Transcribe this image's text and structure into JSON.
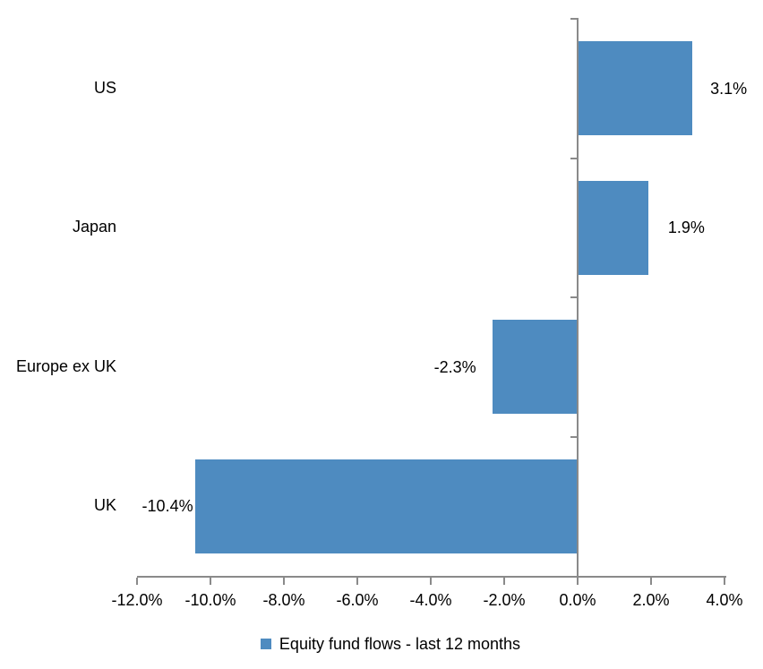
{
  "chart_data": {
    "type": "bar",
    "orientation": "horizontal",
    "title": "",
    "categories": [
      "US",
      "Japan",
      "Europe ex UK",
      "UK"
    ],
    "series": [
      {
        "name": "Equity fund flows - last 12 months",
        "values": [
          3.1,
          1.9,
          -2.3,
          -10.4
        ]
      }
    ],
    "values": [
      3.1,
      1.9,
      -2.3,
      -10.4
    ],
    "data_labels": [
      "3.1%",
      "1.9%",
      "-2.3%",
      "-10.4%"
    ],
    "x_axis": {
      "tick_labels": [
        "-12.0%",
        "-10.0%",
        "-8.0%",
        "-6.0%",
        "-4.0%",
        "-2.0%",
        "0.0%",
        "2.0%",
        "4.0%"
      ],
      "min": -12.0,
      "max": 4.0,
      "step": 2.0,
      "unit": "%"
    },
    "legend": {
      "label": "Equity fund flows - last 12 months",
      "position": "bottom",
      "marker": "square"
    },
    "colors": {
      "bar": "#4E8BC0",
      "axis": "#8A8A8A",
      "text": "#000000",
      "background": "#FFFFFF"
    },
    "grid": false
  }
}
